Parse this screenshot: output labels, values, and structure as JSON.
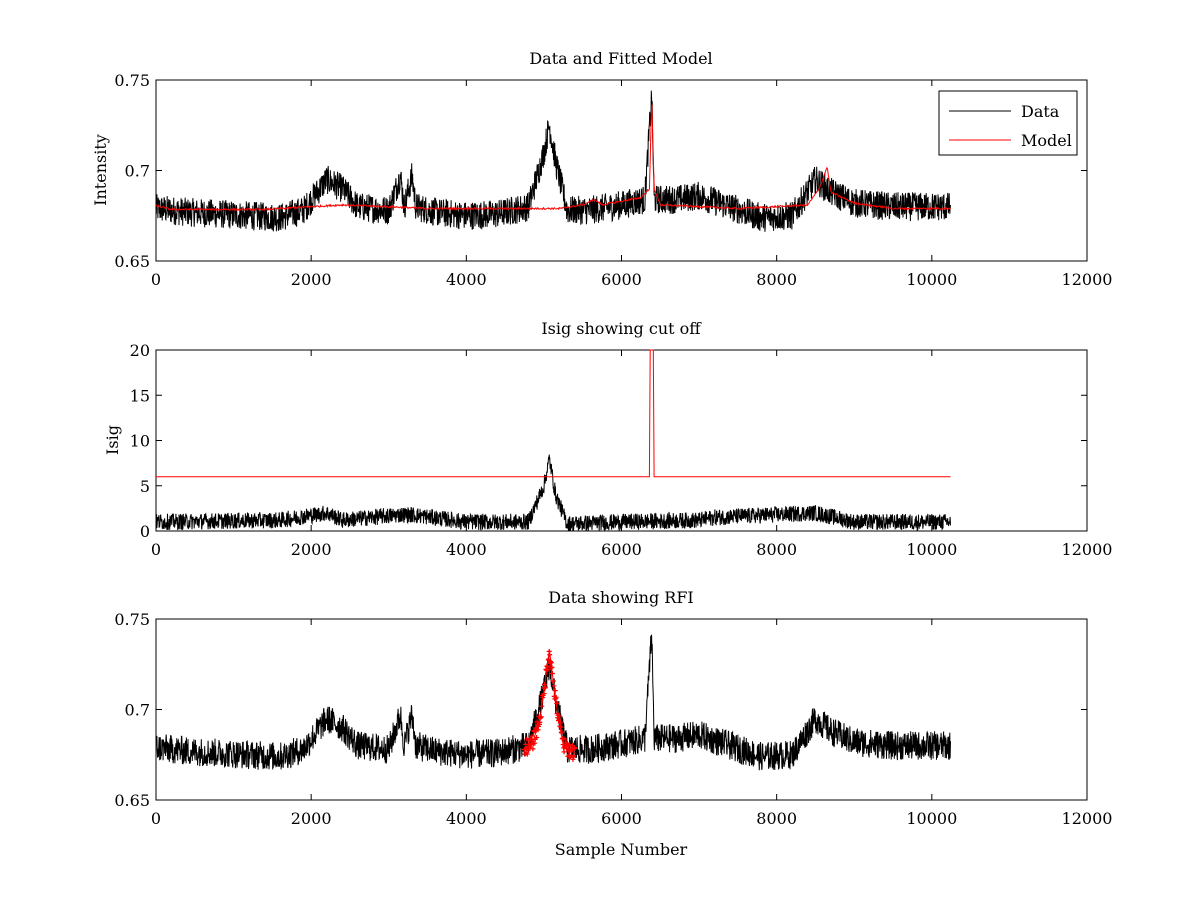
{
  "chart_data": [
    {
      "type": "line",
      "title": "Data and Fitted Model",
      "xlabel": "",
      "ylabel": "Intensity",
      "xlim": [
        0,
        12000
      ],
      "ylim": [
        0.65,
        0.75
      ],
      "xticks": [
        0,
        2000,
        4000,
        6000,
        8000,
        10000,
        12000
      ],
      "yticks": [
        0.65,
        0.7,
        0.75
      ],
      "xtick_labels": [
        "0",
        "2000",
        "4000",
        "6000",
        "8000",
        "10000",
        "12000"
      ],
      "ytick_labels": [
        "0.65",
        "0.7",
        "0.75"
      ],
      "grid": false,
      "legend_position": "top-right",
      "colors": {
        "data": "#000000",
        "model": "#ff0000"
      },
      "series": [
        {
          "name": "Data",
          "color": "#000000",
          "x_range": [
            0,
            10240
          ],
          "approx_values": [
            [
              0,
              0.679
            ],
            [
              400,
              0.677
            ],
            [
              800,
              0.676
            ],
            [
              1200,
              0.675
            ],
            [
              1600,
              0.674
            ],
            [
              1900,
              0.678
            ],
            [
              2200,
              0.695
            ],
            [
              2400,
              0.69
            ],
            [
              2600,
              0.68
            ],
            [
              3000,
              0.678
            ],
            [
              3150,
              0.697
            ],
            [
              3200,
              0.68
            ],
            [
              3300,
              0.697
            ],
            [
              3350,
              0.68
            ],
            [
              3600,
              0.677
            ],
            [
              4000,
              0.675
            ],
            [
              4400,
              0.676
            ],
            [
              4800,
              0.68
            ],
            [
              5000,
              0.71
            ],
            [
              5070,
              0.725
            ],
            [
              5150,
              0.705
            ],
            [
              5300,
              0.678
            ],
            [
              5600,
              0.678
            ],
            [
              6000,
              0.681
            ],
            [
              6300,
              0.684
            ],
            [
              6390,
              0.742
            ],
            [
              6420,
              0.684
            ],
            [
              6700,
              0.684
            ],
            [
              7000,
              0.686
            ],
            [
              7400,
              0.68
            ],
            [
              7800,
              0.674
            ],
            [
              8200,
              0.675
            ],
            [
              8500,
              0.695
            ],
            [
              8700,
              0.688
            ],
            [
              9000,
              0.682
            ],
            [
              9500,
              0.68
            ],
            [
              10240,
              0.68
            ]
          ]
        },
        {
          "name": "Model",
          "color": "#ff0000",
          "x_range": [
            0,
            10240
          ],
          "approx_values": [
            [
              0,
              0.6805
            ],
            [
              200,
              0.6785
            ],
            [
              1400,
              0.6785
            ],
            [
              2000,
              0.68
            ],
            [
              2400,
              0.681
            ],
            [
              3000,
              0.68
            ],
            [
              3500,
              0.679
            ],
            [
              4500,
              0.679
            ],
            [
              5200,
              0.679
            ],
            [
              5500,
              0.681
            ],
            [
              5650,
              0.684
            ],
            [
              5750,
              0.681
            ],
            [
              6000,
              0.683
            ],
            [
              6250,
              0.685
            ],
            [
              6360,
              0.69
            ],
            [
              6390,
              0.74
            ],
            [
              6420,
              0.69
            ],
            [
              6500,
              0.681
            ],
            [
              7000,
              0.68
            ],
            [
              7500,
              0.679
            ],
            [
              8000,
              0.68
            ],
            [
              8400,
              0.681
            ],
            [
              8550,
              0.69
            ],
            [
              8650,
              0.702
            ],
            [
              8700,
              0.688
            ],
            [
              9000,
              0.682
            ],
            [
              9500,
              0.679
            ],
            [
              10240,
              0.679
            ]
          ]
        }
      ]
    },
    {
      "type": "line",
      "title": "Isig showing cut off",
      "xlabel": "",
      "ylabel": "Isig",
      "xlim": [
        0,
        12000
      ],
      "ylim": [
        0,
        20
      ],
      "xticks": [
        0,
        2000,
        4000,
        6000,
        8000,
        10000,
        12000
      ],
      "yticks": [
        0,
        5,
        10,
        15,
        20
      ],
      "xtick_labels": [
        "0",
        "2000",
        "4000",
        "6000",
        "8000",
        "10000",
        "12000"
      ],
      "ytick_labels": [
        "0",
        "5",
        "10",
        "15",
        "20"
      ],
      "grid": false,
      "colors": {
        "isig": "#000000",
        "cutoff": "#ff0000"
      },
      "series": [
        {
          "color": "#000000",
          "x_range": [
            0,
            10240
          ],
          "approx_values": [
            [
              0,
              1.0
            ],
            [
              1600,
              1.2
            ],
            [
              2200,
              2.0
            ],
            [
              2400,
              1.2
            ],
            [
              3150,
              1.8
            ],
            [
              3300,
              1.8
            ],
            [
              4000,
              1.0
            ],
            [
              4800,
              1.0
            ],
            [
              5000,
              5.0
            ],
            [
              5070,
              8.0
            ],
            [
              5150,
              4.0
            ],
            [
              5300,
              0.8
            ],
            [
              6000,
              1.0
            ],
            [
              7000,
              1.2
            ],
            [
              7200,
              1.5
            ],
            [
              8500,
              2.0
            ],
            [
              9000,
              1.0
            ],
            [
              10240,
              1.0
            ]
          ]
        },
        {
          "color": "#ff0000",
          "x_range": [
            0,
            10240
          ],
          "approx_values": [
            [
              0,
              6
            ],
            [
              6360,
              6
            ],
            [
              6370,
              20
            ],
            [
              6410,
              20
            ],
            [
              6420,
              6
            ],
            [
              10240,
              6
            ]
          ]
        }
      ]
    },
    {
      "type": "line",
      "title": "Data showing RFI",
      "xlabel": "Sample Number",
      "ylabel": "",
      "xlim": [
        0,
        12000
      ],
      "ylim": [
        0.65,
        0.75
      ],
      "xticks": [
        0,
        2000,
        4000,
        6000,
        8000,
        10000,
        12000
      ],
      "yticks": [
        0.65,
        0.7,
        0.75
      ],
      "xtick_labels": [
        "0",
        "2000",
        "4000",
        "6000",
        "8000",
        "10000",
        "12000"
      ],
      "ytick_labels": [
        "0.65",
        "0.7",
        "0.75"
      ],
      "grid": false,
      "colors": {
        "data": "#000000",
        "rfi": "#ff0000"
      },
      "series": [
        {
          "color": "#000000",
          "x_range": [
            0,
            10240
          ],
          "approx_values": [
            [
              0,
              0.679
            ],
            [
              400,
              0.677
            ],
            [
              800,
              0.676
            ],
            [
              1200,
              0.675
            ],
            [
              1600,
              0.674
            ],
            [
              1900,
              0.678
            ],
            [
              2200,
              0.695
            ],
            [
              2400,
              0.69
            ],
            [
              2600,
              0.68
            ],
            [
              3000,
              0.678
            ],
            [
              3150,
              0.697
            ],
            [
              3200,
              0.68
            ],
            [
              3300,
              0.697
            ],
            [
              3350,
              0.68
            ],
            [
              3600,
              0.677
            ],
            [
              4000,
              0.675
            ],
            [
              4400,
              0.676
            ],
            [
              4800,
              0.68
            ],
            [
              5000,
              0.71
            ],
            [
              5070,
              0.725
            ],
            [
              5150,
              0.705
            ],
            [
              5300,
              0.678
            ],
            [
              5600,
              0.678
            ],
            [
              6000,
              0.681
            ],
            [
              6300,
              0.684
            ],
            [
              6390,
              0.742
            ],
            [
              6420,
              0.684
            ],
            [
              6700,
              0.684
            ],
            [
              7000,
              0.686
            ],
            [
              7400,
              0.68
            ],
            [
              7800,
              0.674
            ],
            [
              8200,
              0.675
            ],
            [
              8500,
              0.695
            ],
            [
              8700,
              0.688
            ],
            [
              9000,
              0.682
            ],
            [
              9500,
              0.68
            ],
            [
              10240,
              0.68
            ]
          ]
        },
        {
          "color": "#ff0000",
          "marker": "+",
          "x_range": [
            4750,
            5400
          ],
          "approx_values": [
            [
              4750,
              0.679
            ],
            [
              4850,
              0.681
            ],
            [
              4950,
              0.695
            ],
            [
              5000,
              0.71
            ],
            [
              5070,
              0.733
            ],
            [
              5150,
              0.705
            ],
            [
              5250,
              0.68
            ],
            [
              5400,
              0.676
            ]
          ]
        }
      ]
    }
  ]
}
